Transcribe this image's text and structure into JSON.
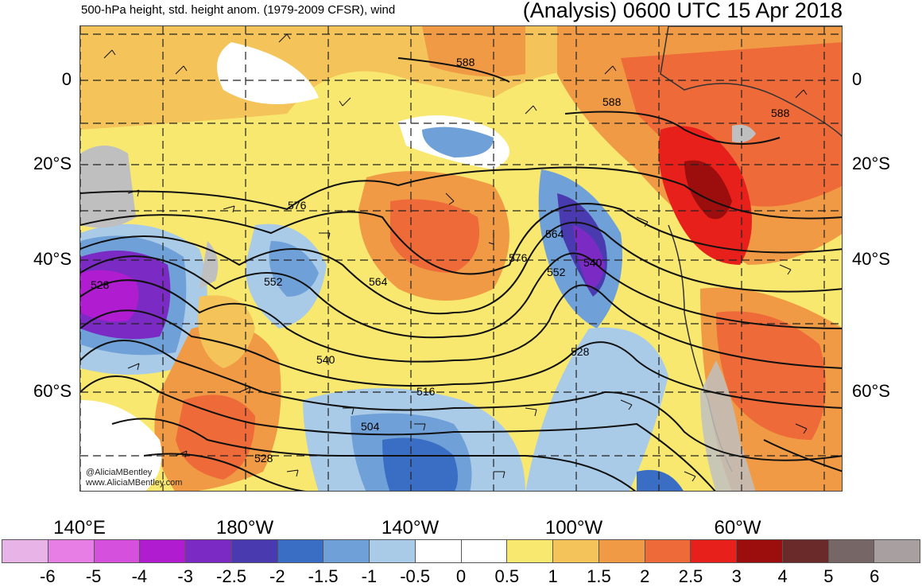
{
  "header": {
    "left_title": "500-hPa height, std. height anom. (1979-2009 CFSR), wind",
    "right_title": "(Analysis) 0600 UTC 15 Apr 2018"
  },
  "map": {
    "lat_labels": [
      "0",
      "20°S",
      "40°S",
      "60°S"
    ],
    "lon_labels": [
      "140°E",
      "180°W",
      "140°W",
      "100°W",
      "60°W"
    ],
    "contour_labels": [
      "588",
      "588",
      "588",
      "576",
      "576",
      "564",
      "564",
      "552",
      "552",
      "540",
      "540",
      "528",
      "528",
      "516",
      "504",
      "528"
    ],
    "credit_line1": "@AliciaMBentley",
    "credit_line2": "www.AliciaMBentley.com"
  },
  "colorbar": {
    "colors": [
      "#e8b4e8",
      "#e67ee6",
      "#d550dd",
      "#b01ccf",
      "#7b2bc4",
      "#4a3ab0",
      "#3a6ec5",
      "#6fa0d8",
      "#a9cbe8",
      "#ffffff",
      "#ffffff",
      "#f8e870",
      "#f4c35a",
      "#f09a45",
      "#ee6a38",
      "#e8201c",
      "#9c0d0d",
      "#6b2a2a",
      "#766666",
      "#a8a0a0"
    ],
    "tick_labels": [
      "-6",
      "-5",
      "-4",
      "-3",
      "-2.5",
      "-2",
      "-1.5",
      "-1",
      "-0.5",
      "0",
      "0.5",
      "1",
      "1.5",
      "2",
      "2.5",
      "3",
      "4",
      "5",
      "6"
    ]
  }
}
